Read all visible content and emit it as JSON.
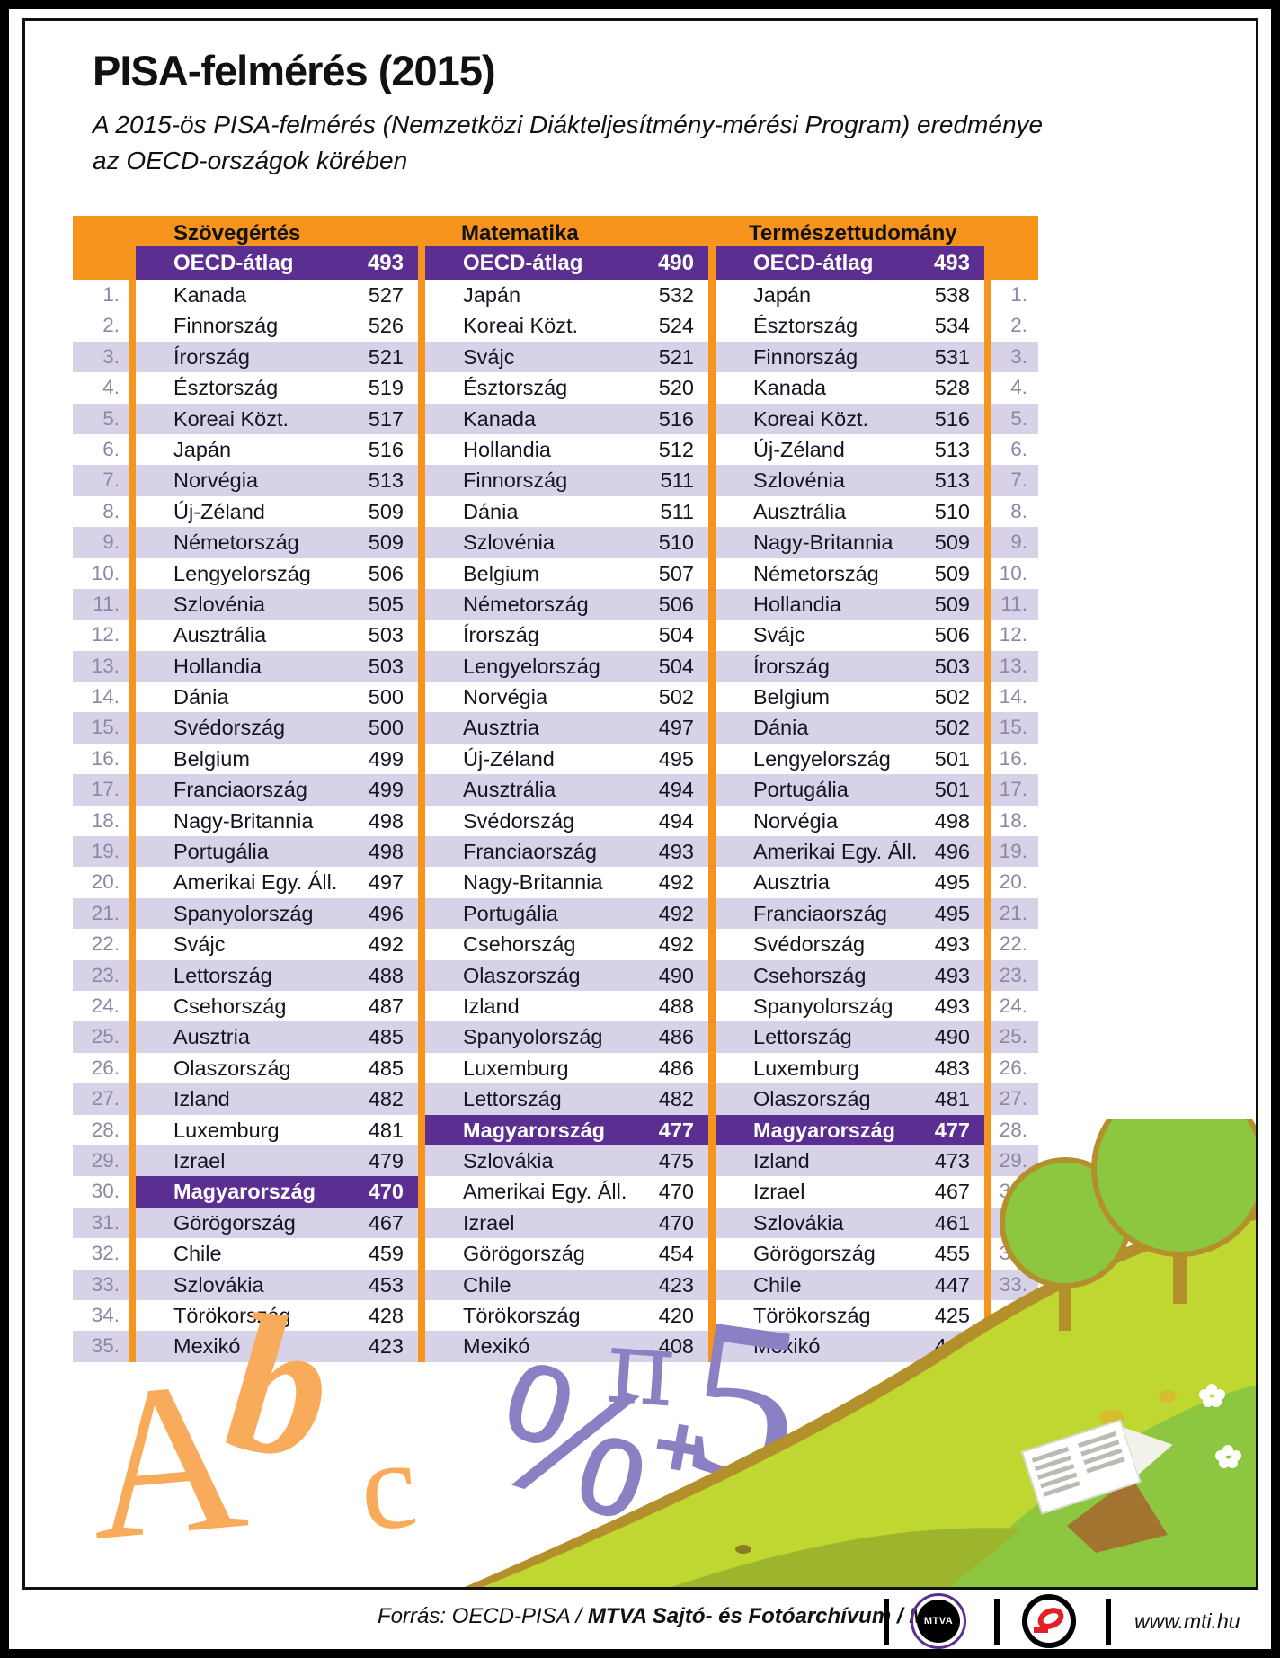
{
  "title": "PISA-felmérés (2015)",
  "subtitle": [
    "A 2015-ös PISA-felmérés (Nemzetközi Diákteljesítmény-mérési Program) eredménye",
    "az OECD-országok körében"
  ],
  "chart_data": {
    "type": "table",
    "title": "PISA-felmérés (2015)",
    "oecd_row_label": "OECD-átlag",
    "highlight_row": "Magyarország",
    "rank_min": 1,
    "rank_max": 35,
    "sections": [
      {
        "label": "Szövegértés",
        "oecd_average": 493,
        "ranking": [
          [
            "Kanada",
            527
          ],
          [
            "Finnország",
            526
          ],
          [
            "Írország",
            521
          ],
          [
            "Észtország",
            519
          ],
          [
            "Koreai Közt.",
            517
          ],
          [
            "Japán",
            516
          ],
          [
            "Norvégia",
            513
          ],
          [
            "Új-Zéland",
            509
          ],
          [
            "Németország",
            509
          ],
          [
            "Lengyelország",
            506
          ],
          [
            "Szlovénia",
            505
          ],
          [
            "Ausztrália",
            503
          ],
          [
            "Hollandia",
            503
          ],
          [
            "Dánia",
            500
          ],
          [
            "Svédország",
            500
          ],
          [
            "Belgium",
            499
          ],
          [
            "Franciaország",
            499
          ],
          [
            "Nagy-Britannia",
            498
          ],
          [
            "Portugália",
            498
          ],
          [
            "Amerikai Egy. Áll.",
            497
          ],
          [
            "Spanyolország",
            496
          ],
          [
            "Svájc",
            492
          ],
          [
            "Lettország",
            488
          ],
          [
            "Csehország",
            487
          ],
          [
            "Ausztria",
            485
          ],
          [
            "Olaszország",
            485
          ],
          [
            "Izland",
            482
          ],
          [
            "Luxemburg",
            481
          ],
          [
            "Izrael",
            479
          ],
          [
            "Magyarország",
            470
          ],
          [
            "Görögország",
            467
          ],
          [
            "Chile",
            459
          ],
          [
            "Szlovákia",
            453
          ],
          [
            "Törökország",
            428
          ],
          [
            "Mexikó",
            423
          ]
        ]
      },
      {
        "label": "Matematika",
        "oecd_average": 490,
        "ranking": [
          [
            "Japán",
            532
          ],
          [
            "Koreai Közt.",
            524
          ],
          [
            "Svájc",
            521
          ],
          [
            "Észtország",
            520
          ],
          [
            "Kanada",
            516
          ],
          [
            "Hollandia",
            512
          ],
          [
            "Finnország",
            511
          ],
          [
            "Dánia",
            511
          ],
          [
            "Szlovénia",
            510
          ],
          [
            "Belgium",
            507
          ],
          [
            "Németország",
            506
          ],
          [
            "Írország",
            504
          ],
          [
            "Lengyelország",
            504
          ],
          [
            "Norvégia",
            502
          ],
          [
            "Ausztria",
            497
          ],
          [
            "Új-Zéland",
            495
          ],
          [
            "Ausztrália",
            494
          ],
          [
            "Svédország",
            494
          ],
          [
            "Franciaország",
            493
          ],
          [
            "Nagy-Britannia",
            492
          ],
          [
            "Portugália",
            492
          ],
          [
            "Csehország",
            492
          ],
          [
            "Olaszország",
            490
          ],
          [
            "Izland",
            488
          ],
          [
            "Spanyolország",
            486
          ],
          [
            "Luxemburg",
            486
          ],
          [
            "Lettország",
            482
          ],
          [
            "Magyarország",
            477
          ],
          [
            "Szlovákia",
            475
          ],
          [
            "Amerikai Egy. Áll.",
            470
          ],
          [
            "Izrael",
            470
          ],
          [
            "Görögország",
            454
          ],
          [
            "Chile",
            423
          ],
          [
            "Törökország",
            420
          ],
          [
            "Mexikó",
            408
          ]
        ]
      },
      {
        "label": "Természettudomány",
        "oecd_average": 493,
        "ranking": [
          [
            "Japán",
            538
          ],
          [
            "Észtország",
            534
          ],
          [
            "Finnország",
            531
          ],
          [
            "Kanada",
            528
          ],
          [
            "Koreai Közt.",
            516
          ],
          [
            "Új-Zéland",
            513
          ],
          [
            "Szlovénia",
            513
          ],
          [
            "Ausztrália",
            510
          ],
          [
            "Nagy-Britannia",
            509
          ],
          [
            "Németország",
            509
          ],
          [
            "Hollandia",
            509
          ],
          [
            "Svájc",
            506
          ],
          [
            "Írország",
            503
          ],
          [
            "Belgium",
            502
          ],
          [
            "Dánia",
            502
          ],
          [
            "Lengyelország",
            501
          ],
          [
            "Portugália",
            501
          ],
          [
            "Norvégia",
            498
          ],
          [
            "Amerikai Egy. Áll.",
            496
          ],
          [
            "Ausztria",
            495
          ],
          [
            "Franciaország",
            495
          ],
          [
            "Svédország",
            493
          ],
          [
            "Csehország",
            493
          ],
          [
            "Spanyolország",
            493
          ],
          [
            "Lettország",
            490
          ],
          [
            "Luxemburg",
            483
          ],
          [
            "Olaszország",
            481
          ],
          [
            "Magyarország",
            477
          ],
          [
            "Izland",
            473
          ],
          [
            "Izrael",
            467
          ],
          [
            "Szlovákia",
            461
          ],
          [
            "Görögország",
            455
          ],
          [
            "Chile",
            447
          ],
          [
            "Törökország",
            425
          ],
          [
            "Mexikó",
            416
          ]
        ]
      }
    ]
  },
  "decor": {
    "letter_a": "A",
    "letter_b": "b",
    "letter_c": "c",
    "percent": "%",
    "pi": "π",
    "plus": "+",
    "five": "5"
  },
  "footer": {
    "source_prefix": "Forrás: OECD-PISA / ",
    "source_bold": "MTVA Sajtó- és Fotóarchívum / MTI",
    "mtva_logo_text": "MTVA",
    "website": "www.mti.hu"
  },
  "colors": {
    "orange": "#F7941E",
    "purple": "#5B2E91",
    "lavender": "#D8D2E8",
    "rank_gray": "#8E87A3",
    "decor_orange": "#F9AB5C",
    "decor_purple": "#8B80C4",
    "hill_gold": "#B3902C",
    "hill_bright": "#C0D731",
    "hill_green": "#8DC63F"
  }
}
